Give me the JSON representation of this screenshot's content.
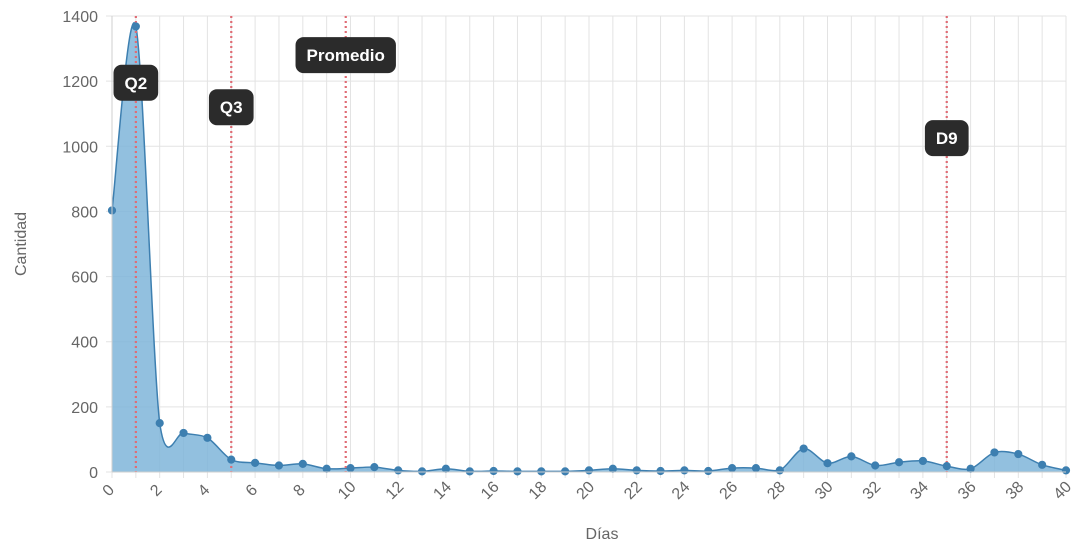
{
  "chart_data": {
    "type": "area",
    "xlabel": "Días",
    "ylabel": "Cantidad",
    "xlim": [
      0,
      40
    ],
    "ylim": [
      0,
      1400
    ],
    "x_ticks": [
      0,
      2,
      4,
      6,
      8,
      10,
      12,
      14,
      16,
      18,
      20,
      22,
      24,
      26,
      28,
      30,
      32,
      34,
      36,
      38,
      40
    ],
    "y_ticks": [
      0,
      200,
      400,
      600,
      800,
      1000,
      1200,
      1400
    ],
    "grid": true,
    "series": [
      {
        "color": "#3d7fb0",
        "fill": "#7fb5d9",
        "x": [
          0,
          1,
          2,
          3,
          4,
          5,
          6,
          7,
          8,
          9,
          10,
          11,
          12,
          13,
          14,
          15,
          16,
          17,
          18,
          19,
          20,
          21,
          22,
          23,
          24,
          25,
          26,
          27,
          28,
          29,
          30,
          31,
          32,
          33,
          34,
          35,
          36,
          37,
          38,
          39,
          40
        ],
        "values": [
          803,
          1368,
          150,
          120,
          105,
          38,
          28,
          20,
          25,
          10,
          12,
          15,
          5,
          2,
          10,
          2,
          3,
          2,
          2,
          2,
          5,
          10,
          5,
          3,
          5,
          3,
          12,
          12,
          5,
          72,
          27,
          48,
          20,
          30,
          34,
          18,
          10,
          60,
          55,
          22,
          5
        ]
      }
    ],
    "annotations": [
      {
        "label": "Q2",
        "x": 1,
        "label_y": 1195
      },
      {
        "label": "Q3",
        "x": 5,
        "label_y": 1120
      },
      {
        "label": "Promedio",
        "x": 9.8,
        "label_y": 1280
      },
      {
        "label": "D9",
        "x": 35,
        "label_y": 1025
      }
    ],
    "annotation_line_color": "#e06c75"
  }
}
